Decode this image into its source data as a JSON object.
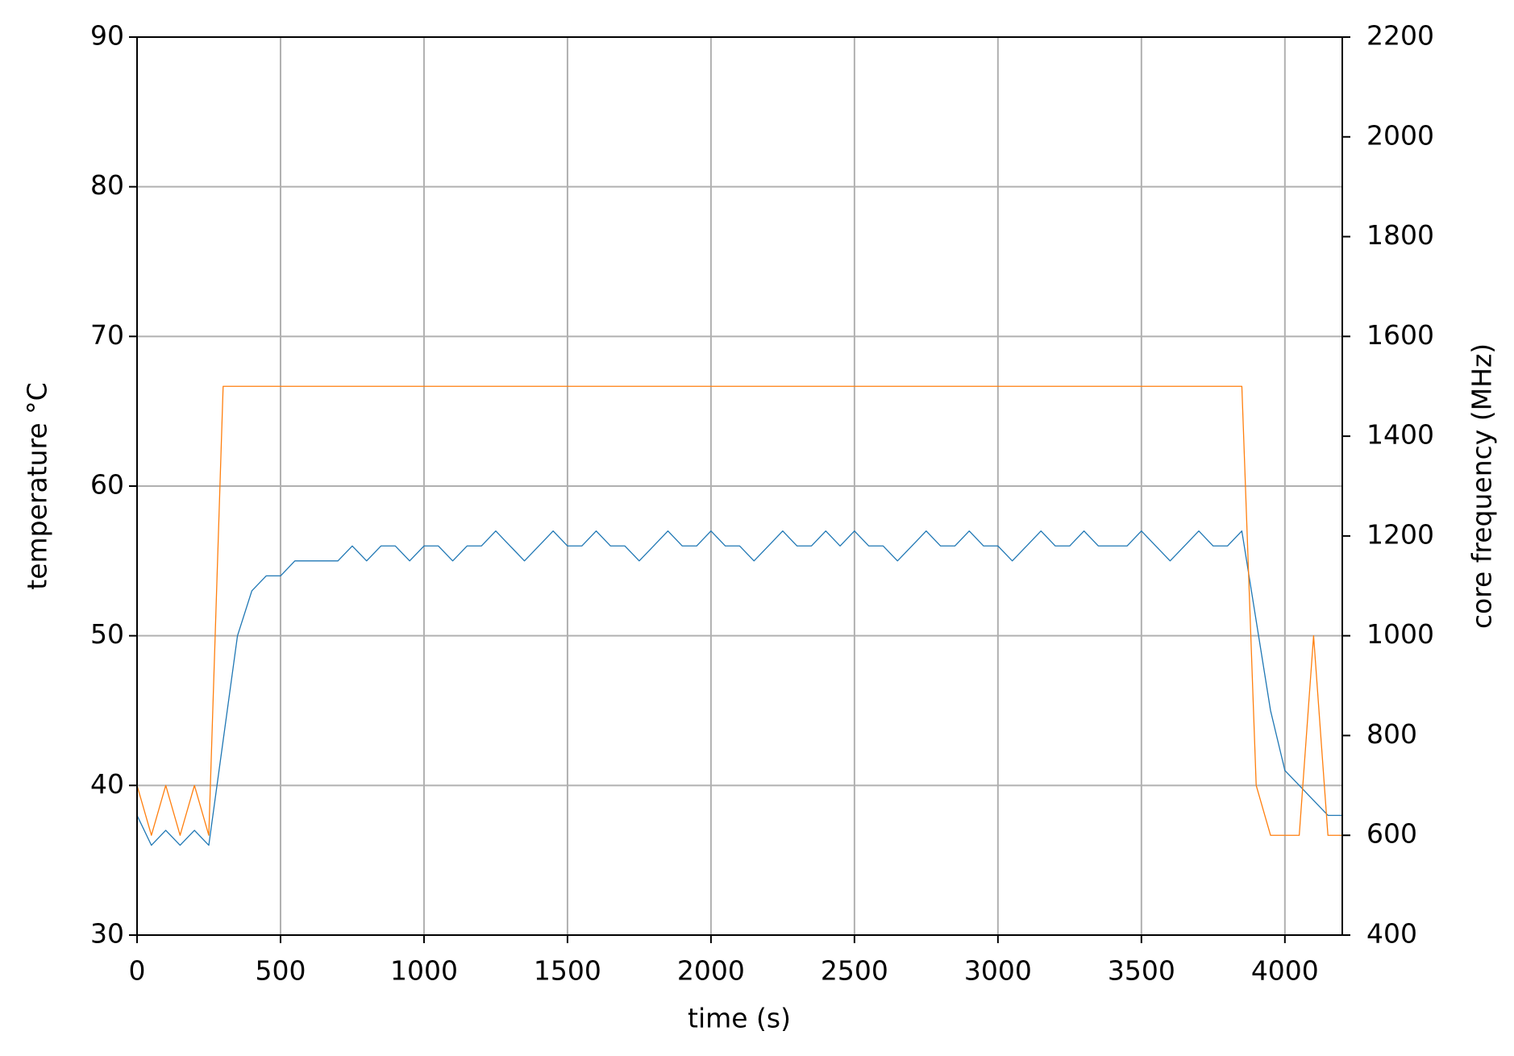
{
  "chart_data": {
    "type": "line",
    "x_label": "time (s)",
    "y_label": "temperature °C",
    "y2_label": "core frequency (MHz)",
    "x": [
      0,
      50,
      100,
      150,
      200,
      250,
      300,
      350,
      400,
      450,
      500,
      550,
      600,
      650,
      700,
      750,
      800,
      850,
      900,
      950,
      1000,
      1050,
      1100,
      1150,
      1200,
      1250,
      1300,
      1350,
      1400,
      1450,
      1500,
      1550,
      1600,
      1650,
      1700,
      1750,
      1800,
      1850,
      1900,
      1950,
      2000,
      2050,
      2100,
      2150,
      2200,
      2250,
      2300,
      2350,
      2400,
      2450,
      2500,
      2550,
      2600,
      2650,
      2700,
      2750,
      2800,
      2850,
      2900,
      2950,
      3000,
      3050,
      3100,
      3150,
      3200,
      3250,
      3300,
      3350,
      3400,
      3450,
      3500,
      3550,
      3600,
      3650,
      3700,
      3750,
      3800,
      3850,
      3900,
      3950,
      4000,
      4050,
      4100,
      4150,
      4200
    ],
    "series": [
      {
        "color": "#1f77b4",
        "axis": "y",
        "values": [
          38,
          36,
          37,
          36,
          37,
          36,
          43,
          50,
          53,
          54,
          54,
          55,
          55,
          55,
          55,
          56,
          55,
          56,
          56,
          55,
          56,
          56,
          55,
          56,
          56,
          57,
          56,
          55,
          56,
          57,
          56,
          56,
          57,
          56,
          56,
          55,
          56,
          57,
          56,
          56,
          57,
          56,
          56,
          55,
          56,
          57,
          56,
          56,
          57,
          56,
          57,
          56,
          56,
          55,
          56,
          57,
          56,
          56,
          57,
          56,
          56,
          55,
          56,
          57,
          56,
          56,
          57,
          56,
          56,
          56,
          57,
          56,
          55,
          56,
          57,
          56,
          56,
          57,
          51,
          45,
          41,
          40,
          39,
          38,
          38
        ]
      },
      {
        "color": "#ff7f0e",
        "axis": "y2",
        "values": [
          700,
          600,
          700,
          600,
          700,
          600,
          1500,
          1500,
          1500,
          1500,
          1500,
          1500,
          1500,
          1500,
          1500,
          1500,
          1500,
          1500,
          1500,
          1500,
          1500,
          1500,
          1500,
          1500,
          1500,
          1500,
          1500,
          1500,
          1500,
          1500,
          1500,
          1500,
          1500,
          1500,
          1500,
          1500,
          1500,
          1500,
          1500,
          1500,
          1500,
          1500,
          1500,
          1500,
          1500,
          1500,
          1500,
          1500,
          1500,
          1500,
          1500,
          1500,
          1500,
          1500,
          1500,
          1500,
          1500,
          1500,
          1500,
          1500,
          1500,
          1500,
          1500,
          1500,
          1500,
          1500,
          1500,
          1500,
          1500,
          1500,
          1500,
          1500,
          1500,
          1500,
          1500,
          1500,
          1500,
          1500,
          700,
          600,
          600,
          600,
          1000,
          600,
          600
        ]
      }
    ],
    "xlim": [
      0,
      4200
    ],
    "xticks": [
      0,
      500,
      1000,
      1500,
      2000,
      2500,
      3000,
      3500,
      4000
    ],
    "ylim": [
      30,
      90
    ],
    "yticks": [
      30,
      40,
      50,
      60,
      70,
      80,
      90
    ],
    "y2lim": [
      400,
      2200
    ],
    "y2ticks": [
      400,
      600,
      800,
      1000,
      1200,
      1400,
      1600,
      1800,
      2000,
      2200
    ],
    "grid": true
  }
}
